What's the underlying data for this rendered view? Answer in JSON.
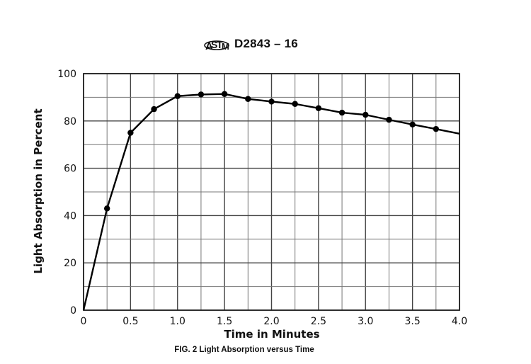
{
  "header": {
    "logo": "astm-logo-icon",
    "standard": "D2843 – 16"
  },
  "chart_data": {
    "type": "line",
    "title": "FIG. 2  Light Absorption versus Time",
    "xlabel": "Time in Minutes",
    "ylabel": "Light Absorption in Percent",
    "xlim": [
      0,
      4.0
    ],
    "ylim": [
      0,
      100
    ],
    "x_ticks": [
      "0",
      "0.5",
      "1.0",
      "1.5",
      "2.0",
      "2.5",
      "3.0",
      "3.5",
      "4.0"
    ],
    "y_ticks": [
      "0",
      "20",
      "40",
      "60",
      "80",
      "100"
    ],
    "grid": true,
    "x_minor_step": 0.25,
    "y_minor_step": 10,
    "series": [
      {
        "name": "Light Absorption",
        "x": [
          0,
          0.25,
          0.5,
          0.75,
          1.0,
          1.25,
          1.5,
          1.75,
          2.0,
          2.25,
          2.5,
          2.75,
          3.0,
          3.25,
          3.5,
          3.75,
          4.0
        ],
        "values": [
          0,
          43,
          75,
          85,
          90.5,
          91.2,
          91.4,
          89.3,
          88.2,
          87.2,
          85.4,
          83.5,
          82.6,
          80.5,
          78.5,
          76.6,
          74.6
        ],
        "markers": [
          false,
          true,
          true,
          true,
          true,
          true,
          true,
          true,
          true,
          true,
          true,
          true,
          true,
          true,
          true,
          true,
          false
        ]
      }
    ]
  }
}
